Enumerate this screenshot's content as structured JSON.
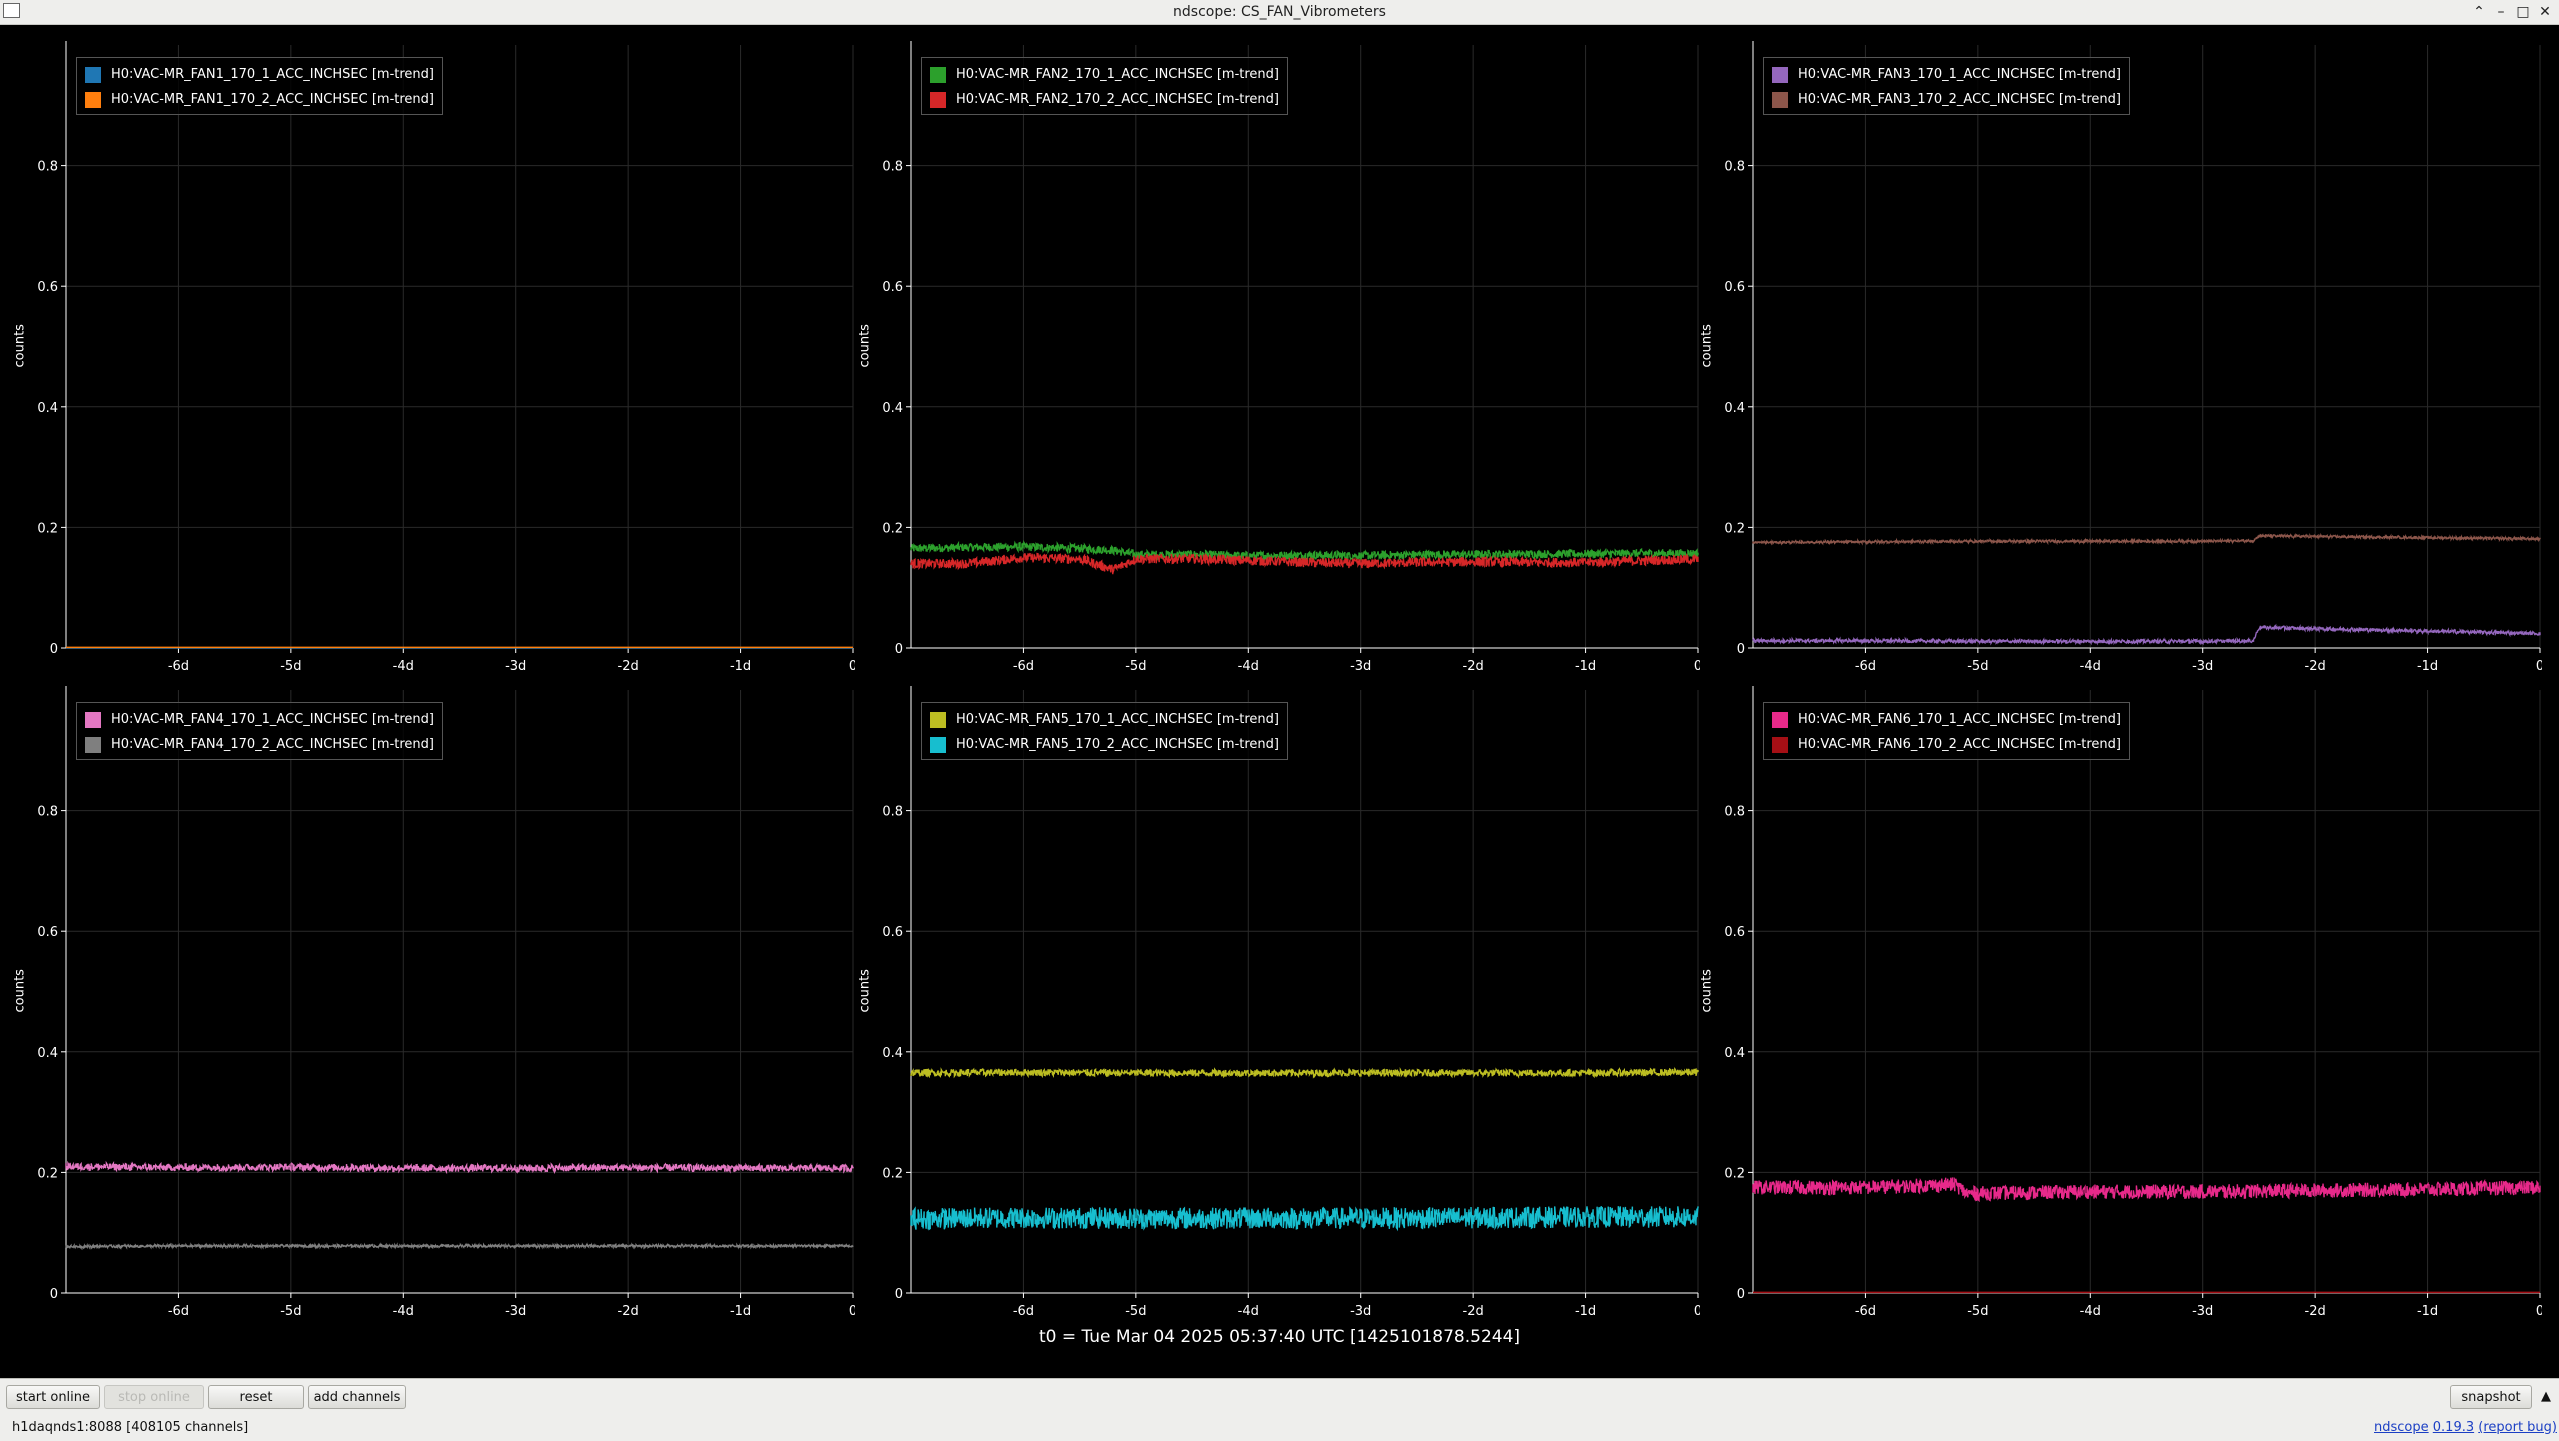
{
  "window": {
    "title": "ndscope: CS_FAN_Vibrometers",
    "controls": {
      "up": "⌃",
      "minimize": "–",
      "maximize": "□",
      "close": "✕"
    }
  },
  "theme": {
    "background": "#000000",
    "grid": "#2a2a2a",
    "axis": "#ffffff"
  },
  "plots": [
    {
      "title": "",
      "ylabel": "counts",
      "legend": [
        {
          "label": "H0:VAC-MR_FAN1_170_1_ACC_INCHSEC [m-trend]",
          "color": "#1f77b4"
        },
        {
          "label": "H0:VAC-MR_FAN1_170_2_ACC_INCHSEC [m-trend]",
          "color": "#ff7f0e"
        }
      ]
    },
    {
      "title": "",
      "ylabel": "counts",
      "legend": [
        {
          "label": "H0:VAC-MR_FAN2_170_1_ACC_INCHSEC [m-trend]",
          "color": "#2ca02c"
        },
        {
          "label": "H0:VAC-MR_FAN2_170_2_ACC_INCHSEC [m-trend]",
          "color": "#d62728"
        }
      ]
    },
    {
      "title": "",
      "ylabel": "counts",
      "legend": [
        {
          "label": "H0:VAC-MR_FAN3_170_1_ACC_INCHSEC [m-trend]",
          "color": "#9467bd"
        },
        {
          "label": "H0:VAC-MR_FAN3_170_2_ACC_INCHSEC [m-trend]",
          "color": "#8c564b"
        }
      ]
    },
    {
      "title": "",
      "ylabel": "counts",
      "legend": [
        {
          "label": "H0:VAC-MR_FAN4_170_1_ACC_INCHSEC [m-trend]",
          "color": "#e377c2"
        },
        {
          "label": "H0:VAC-MR_FAN4_170_2_ACC_INCHSEC [m-trend]",
          "color": "#7f7f7f"
        }
      ]
    },
    {
      "title": "",
      "ylabel": "counts",
      "legend": [
        {
          "label": "H0:VAC-MR_FAN5_170_1_ACC_INCHSEC [m-trend]",
          "color": "#bcbd22"
        },
        {
          "label": "H0:VAC-MR_FAN5_170_2_ACC_INCHSEC [m-trend]",
          "color": "#17becf"
        }
      ]
    },
    {
      "title": "",
      "ylabel": "counts",
      "legend": [
        {
          "label": "H0:VAC-MR_FAN6_170_1_ACC_INCHSEC [m-trend]",
          "color": "#e7298a"
        },
        {
          "label": "H0:VAC-MR_FAN6_170_2_ACC_INCHSEC [m-trend]",
          "color": "#a50f15"
        }
      ]
    }
  ],
  "chart_data": [
    {
      "type": "line",
      "title": "",
      "xlabel": "",
      "ylabel": "counts",
      "xlim": [
        -7,
        0
      ],
      "ylim": [
        0,
        1
      ],
      "x_ticks": [
        -6,
        -5,
        -4,
        -3,
        -2,
        -1,
        0
      ],
      "x_tick_labels": [
        "-6d",
        "-5d",
        "-4d",
        "-3d",
        "-2d",
        "-1d",
        "0"
      ],
      "y_ticks": [
        0,
        0.2,
        0.4,
        0.6,
        0.8
      ],
      "y_tick_labels": [
        "0",
        "0.2",
        "0.4",
        "0.6",
        "0.8"
      ],
      "grid": true,
      "legend_position": "top-left",
      "x": [
        -7,
        -6,
        -5,
        -4,
        -3,
        -2,
        -1,
        0
      ],
      "series": [
        {
          "name": "H0:VAC-MR_FAN1_170_1_ACC_INCHSEC [m-trend]",
          "color": "#1f77b4",
          "values": [
            0,
            0,
            0,
            0,
            0,
            0,
            0,
            0
          ],
          "noise": 0
        },
        {
          "name": "H0:VAC-MR_FAN1_170_2_ACC_INCHSEC [m-trend]",
          "color": "#ff7f0e",
          "values": [
            0.001,
            0.001,
            0.001,
            0.001,
            0.001,
            0.001,
            0.001,
            0.001
          ],
          "noise": 0
        }
      ]
    },
    {
      "type": "line",
      "title": "",
      "xlabel": "",
      "ylabel": "counts",
      "xlim": [
        -7,
        0
      ],
      "ylim": [
        0,
        1
      ],
      "x_ticks": [
        -6,
        -5,
        -4,
        -3,
        -2,
        -1,
        0
      ],
      "x_tick_labels": [
        "-6d",
        "-5d",
        "-4d",
        "-3d",
        "-2d",
        "-1d",
        "0"
      ],
      "y_ticks": [
        0,
        0.2,
        0.4,
        0.6,
        0.8
      ],
      "y_tick_labels": [
        "0",
        "0.2",
        "0.4",
        "0.6",
        "0.8"
      ],
      "grid": true,
      "legend_position": "top-left",
      "x": [
        -7,
        -6.5,
        -6,
        -5.5,
        -5.2,
        -5,
        -4.5,
        -4,
        -3.5,
        -3,
        -2.5,
        -2,
        -1.5,
        -1,
        -0.5,
        0
      ],
      "series": [
        {
          "name": "H0:VAC-MR_FAN2_170_1_ACC_INCHSEC [m-trend]",
          "color": "#2ca02c",
          "values": [
            0.165,
            0.167,
            0.168,
            0.165,
            0.162,
            0.155,
            0.155,
            0.153,
            0.154,
            0.153,
            0.155,
            0.155,
            0.156,
            0.156,
            0.157,
            0.157
          ],
          "noise": 0.007
        },
        {
          "name": "H0:VAC-MR_FAN2_170_2_ACC_INCHSEC [m-trend]",
          "color": "#d62728",
          "values": [
            0.14,
            0.14,
            0.15,
            0.148,
            0.13,
            0.148,
            0.148,
            0.145,
            0.142,
            0.14,
            0.142,
            0.143,
            0.142,
            0.142,
            0.145,
            0.147
          ],
          "noise": 0.008
        }
      ]
    },
    {
      "type": "line",
      "title": "",
      "xlabel": "",
      "ylabel": "counts",
      "xlim": [
        -7,
        0
      ],
      "ylim": [
        0,
        1
      ],
      "x_ticks": [
        -6,
        -5,
        -4,
        -3,
        -2,
        -1,
        0
      ],
      "x_tick_labels": [
        "-6d",
        "-5d",
        "-4d",
        "-3d",
        "-2d",
        "-1d",
        "0"
      ],
      "y_ticks": [
        0,
        0.2,
        0.4,
        0.6,
        0.8
      ],
      "y_tick_labels": [
        "0",
        "0.2",
        "0.4",
        "0.6",
        "0.8"
      ],
      "grid": true,
      "legend_position": "top-left",
      "x": [
        -7,
        -6,
        -5,
        -4,
        -3,
        -2.55,
        -2.5,
        -2,
        -1,
        0
      ],
      "series": [
        {
          "name": "H0:VAC-MR_FAN3_170_1_ACC_INCHSEC [m-trend]",
          "color": "#9467bd",
          "values": [
            0.012,
            0.012,
            0.011,
            0.011,
            0.011,
            0.012,
            0.034,
            0.032,
            0.028,
            0.024
          ],
          "noise": 0.003
        },
        {
          "name": "H0:VAC-MR_FAN3_170_2_ACC_INCHSEC [m-trend]",
          "color": "#8c564b",
          "values": [
            0.175,
            0.176,
            0.177,
            0.177,
            0.177,
            0.178,
            0.186,
            0.185,
            0.183,
            0.181
          ],
          "noise": 0.002
        }
      ]
    },
    {
      "type": "line",
      "title": "",
      "xlabel": "",
      "ylabel": "counts",
      "xlim": [
        -7,
        0
      ],
      "ylim": [
        0,
        1
      ],
      "x_ticks": [
        -6,
        -5,
        -4,
        -3,
        -2,
        -1,
        0
      ],
      "x_tick_labels": [
        "-6d",
        "-5d",
        "-4d",
        "-3d",
        "-2d",
        "-1d",
        "0"
      ],
      "y_ticks": [
        0,
        0.2,
        0.4,
        0.6,
        0.8
      ],
      "y_tick_labels": [
        "0",
        "0.2",
        "0.4",
        "0.6",
        "0.8"
      ],
      "grid": true,
      "legend_position": "top-left",
      "x": [
        -7,
        -6,
        -5,
        -4,
        -3,
        -2,
        -1,
        0
      ],
      "series": [
        {
          "name": "H0:VAC-MR_FAN4_170_1_ACC_INCHSEC [m-trend]",
          "color": "#e377c2",
          "values": [
            0.21,
            0.208,
            0.209,
            0.207,
            0.207,
            0.208,
            0.207,
            0.207
          ],
          "noise": 0.006
        },
        {
          "name": "H0:VAC-MR_FAN4_170_2_ACC_INCHSEC [m-trend]",
          "color": "#7f7f7f",
          "values": [
            0.077,
            0.078,
            0.078,
            0.078,
            0.078,
            0.078,
            0.078,
            0.078
          ],
          "noise": 0.002
        }
      ]
    },
    {
      "type": "line",
      "title": "",
      "xlabel": "",
      "ylabel": "counts",
      "xlim": [
        -7,
        0
      ],
      "ylim": [
        0,
        1
      ],
      "x_ticks": [
        -6,
        -5,
        -4,
        -3,
        -2,
        -1,
        0
      ],
      "x_tick_labels": [
        "-6d",
        "-5d",
        "-4d",
        "-3d",
        "-2d",
        "-1d",
        "0"
      ],
      "y_ticks": [
        0,
        0.2,
        0.4,
        0.6,
        0.8
      ],
      "y_tick_labels": [
        "0",
        "0.2",
        "0.4",
        "0.6",
        "0.8"
      ],
      "grid": true,
      "legend_position": "top-left",
      "x": [
        -7,
        -6,
        -5,
        -4,
        -3,
        -2,
        -1,
        0
      ],
      "series": [
        {
          "name": "H0:VAC-MR_FAN5_170_1_ACC_INCHSEC [m-trend]",
          "color": "#bcbd22",
          "values": [
            0.365,
            0.366,
            0.365,
            0.365,
            0.365,
            0.365,
            0.365,
            0.366
          ],
          "noise": 0.006
        },
        {
          "name": "H0:VAC-MR_FAN5_170_2_ACC_INCHSEC [m-trend]",
          "color": "#17becf",
          "values": [
            0.123,
            0.125,
            0.124,
            0.124,
            0.124,
            0.125,
            0.126,
            0.126
          ],
          "noise": 0.018
        }
      ]
    },
    {
      "type": "line",
      "title": "",
      "xlabel": "",
      "ylabel": "counts",
      "xlim": [
        -7,
        0
      ],
      "ylim": [
        0,
        1
      ],
      "x_ticks": [
        -6,
        -5,
        -4,
        -3,
        -2,
        -1,
        0
      ],
      "x_tick_labels": [
        "-6d",
        "-5d",
        "-4d",
        "-3d",
        "-2d",
        "-1d",
        "0"
      ],
      "y_ticks": [
        0,
        0.2,
        0.4,
        0.6,
        0.8
      ],
      "y_tick_labels": [
        "0",
        "0.2",
        "0.4",
        "0.6",
        "0.8"
      ],
      "grid": true,
      "legend_position": "top-left",
      "x": [
        -7,
        -6,
        -5.2,
        -5.1,
        -4,
        -3,
        -2,
        -1,
        0
      ],
      "series": [
        {
          "name": "H0:VAC-MR_FAN6_170_1_ACC_INCHSEC [m-trend]",
          "color": "#e7298a",
          "values": [
            0.175,
            0.175,
            0.18,
            0.165,
            0.168,
            0.168,
            0.17,
            0.172,
            0.175
          ],
          "noise": 0.012
        },
        {
          "name": "H0:VAC-MR_FAN6_170_2_ACC_INCHSEC [m-trend]",
          "color": "#a50f15",
          "values": [
            0.001,
            0.001,
            0.001,
            0.001,
            0.001,
            0.001,
            0.001,
            0.001,
            0.001
          ],
          "noise": 0
        }
      ]
    }
  ],
  "t0_label": "t0 = Tue Mar 04 2025 05:37:40 UTC [1425101878.5244]",
  "toolbar": {
    "start_online": "start online",
    "stop_online": "stop online",
    "reset": "reset",
    "add_channels": "add channels",
    "snapshot": "snapshot",
    "menu_arrow": "▲"
  },
  "status": {
    "server": "h1daqnds1:8088",
    "channels": "[408105 channels]",
    "ndscope_link": "ndscope",
    "version_link": "0.19.3",
    "report_bug_link": "(report bug)"
  }
}
